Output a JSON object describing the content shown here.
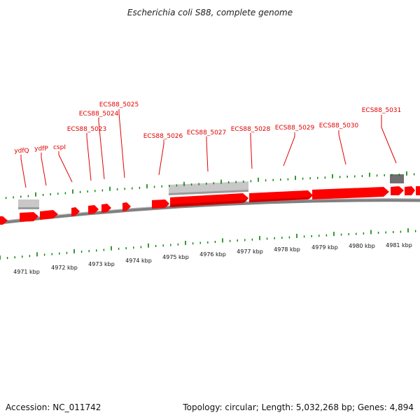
{
  "title": "Escherichia coli S88, complete genome",
  "footer": {
    "accession": "Accession: NC_011742",
    "summary": "Topology: circular; Length: 5,032,268 bp; Genes: 4,894"
  },
  "colors": {
    "gene": "#ff0000",
    "gene_dark": "#c80000",
    "backbone": "#808080",
    "ticks": "#008000",
    "label": "#e00000",
    "ncrna_light": "#c8c8c8",
    "ncrna_dark": "#707070"
  },
  "scale_labels": [
    "4971 kbp",
    "4972 kbp",
    "4973 kbp",
    "4974 kbp",
    "4975 kbp",
    "4976 kbp",
    "4977 kbp",
    "4978 kbp",
    "4979 kbp",
    "4980 kbp",
    "4981 kbp"
  ],
  "gene_labels": [
    "ydfQ",
    "ydfP",
    "cspI",
    "ECS88_5023",
    "ECS88_5024",
    "ECS88_5025",
    "ECS88_5026",
    "ECS88_5027",
    "ECS88_5028",
    "ECS88_5029",
    "ECS88_5030",
    "ECS88_5031"
  ]
}
